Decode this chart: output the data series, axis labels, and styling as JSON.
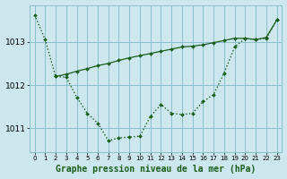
{
  "title": "Graphe pression niveau de la mer (hPa)",
  "background_color": "#cce8ee",
  "grid_color": "#8bbfcc",
  "line_color": "#1a5c1a",
  "marker_color": "#1a5c1a",
  "xlim": [
    -0.5,
    23.5
  ],
  "ylim": [
    1010.45,
    1013.85
  ],
  "yticks": [
    1011,
    1012,
    1013
  ],
  "xticks": [
    0,
    1,
    2,
    3,
    4,
    5,
    6,
    7,
    8,
    9,
    10,
    11,
    12,
    13,
    14,
    15,
    16,
    17,
    18,
    19,
    20,
    21,
    22,
    23
  ],
  "hours": [
    0,
    1,
    2,
    3,
    4,
    5,
    6,
    7,
    8,
    9,
    10,
    11,
    12,
    13,
    14,
    15,
    16,
    17,
    18,
    19,
    20,
    21,
    22,
    23
  ],
  "pressure_dotted": [
    1013.62,
    1013.05,
    1012.2,
    1012.18,
    1011.72,
    1011.35,
    1011.12,
    1010.72,
    1010.78,
    1010.8,
    1010.82,
    1011.28,
    1011.55,
    1011.35,
    1011.32,
    1011.35,
    1011.62,
    1011.78,
    1012.28,
    1012.88,
    1013.08,
    1013.05,
    1013.08,
    1013.5
  ],
  "hours_solid": [
    2,
    3,
    4,
    5,
    6,
    7,
    8,
    9,
    10,
    11,
    12,
    13,
    14,
    15,
    16,
    17,
    18,
    19,
    20,
    21,
    22,
    23
  ],
  "pressure_solid": [
    1012.2,
    1012.25,
    1012.32,
    1012.38,
    1012.45,
    1012.5,
    1012.57,
    1012.63,
    1012.68,
    1012.73,
    1012.78,
    1012.83,
    1012.88,
    1012.9,
    1012.93,
    1012.98,
    1013.03,
    1013.08,
    1013.08,
    1013.05,
    1013.1,
    1013.5
  ],
  "xlabel_fontsize": 5.5,
  "ylabel_fontsize": 6.5,
  "title_fontsize": 7.0,
  "xtick_fontsize": 5.0,
  "ytick_fontsize": 6.5
}
